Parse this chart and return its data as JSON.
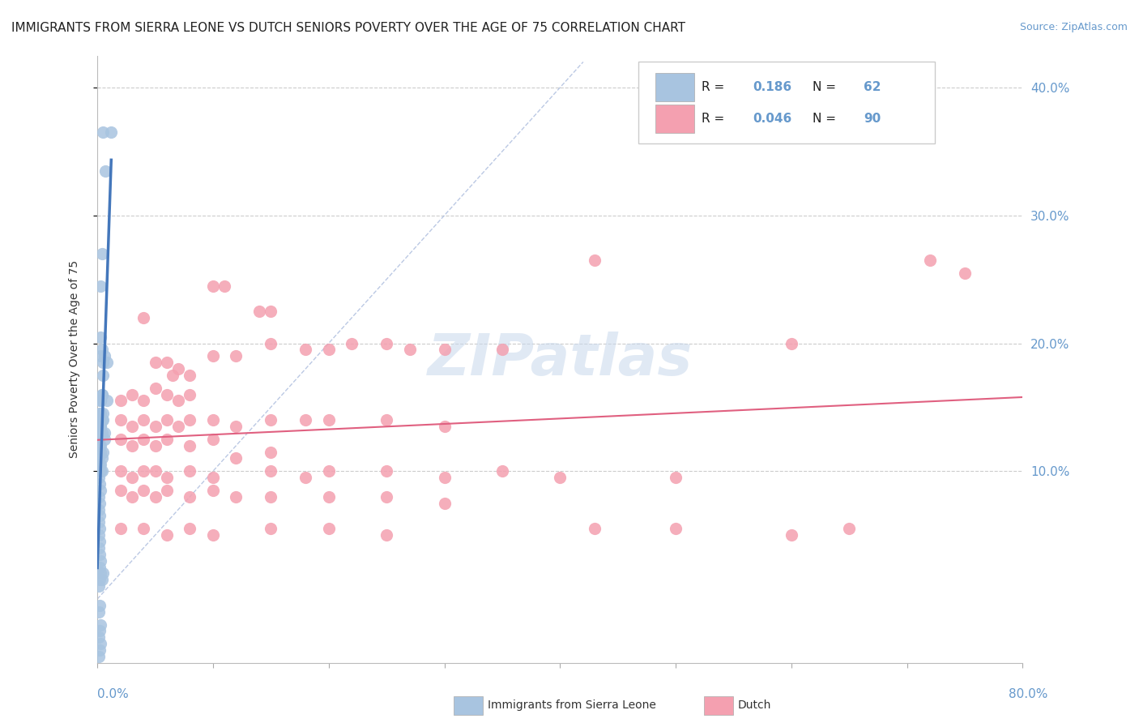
{
  "title": "IMMIGRANTS FROM SIERRA LEONE VS DUTCH SENIORS POVERTY OVER THE AGE OF 75 CORRELATION CHART",
  "source": "Source: ZipAtlas.com",
  "ylabel": "Seniors Poverty Over the Age of 75",
  "xlim": [
    0.0,
    0.8
  ],
  "ylim": [
    -0.05,
    0.425
  ],
  "watermark": "ZIPatlas",
  "blue_color": "#a8c4e0",
  "pink_color": "#f4a0b0",
  "blue_line_color": "#4477bb",
  "pink_line_color": "#e06080",
  "diag_color": "#aabbdd",
  "grid_color": "#cccccc",
  "tick_label_color": "#6699cc",
  "title_fontsize": 11,
  "source_fontsize": 9,
  "background_color": "#ffffff",
  "blue_scatter": [
    [
      0.005,
      0.365
    ],
    [
      0.012,
      0.365
    ],
    [
      0.007,
      0.335
    ],
    [
      0.004,
      0.27
    ],
    [
      0.003,
      0.245
    ],
    [
      0.003,
      0.205
    ],
    [
      0.004,
      0.195
    ],
    [
      0.006,
      0.19
    ],
    [
      0.008,
      0.185
    ],
    [
      0.005,
      0.175
    ],
    [
      0.003,
      0.19
    ],
    [
      0.005,
      0.185
    ],
    [
      0.003,
      0.155
    ],
    [
      0.004,
      0.16
    ],
    [
      0.008,
      0.155
    ],
    [
      0.003,
      0.145
    ],
    [
      0.005,
      0.14
    ],
    [
      0.003,
      0.135
    ],
    [
      0.004,
      0.13
    ],
    [
      0.006,
      0.125
    ],
    [
      0.003,
      0.12
    ],
    [
      0.005,
      0.115
    ],
    [
      0.004,
      0.11
    ],
    [
      0.003,
      0.105
    ],
    [
      0.004,
      0.1
    ],
    [
      0.003,
      0.135
    ],
    [
      0.006,
      0.13
    ],
    [
      0.003,
      0.155
    ],
    [
      0.004,
      0.16
    ],
    [
      0.005,
      0.145
    ],
    [
      0.001,
      0.125
    ],
    [
      0.002,
      0.12
    ],
    [
      0.003,
      0.115
    ],
    [
      0.001,
      0.11
    ],
    [
      0.002,
      0.105
    ],
    [
      0.003,
      0.1
    ],
    [
      0.001,
      0.095
    ],
    [
      0.002,
      0.09
    ],
    [
      0.003,
      0.085
    ],
    [
      0.001,
      0.08
    ],
    [
      0.002,
      0.075
    ],
    [
      0.001,
      0.07
    ],
    [
      0.002,
      0.065
    ],
    [
      0.001,
      0.06
    ],
    [
      0.002,
      0.055
    ],
    [
      0.001,
      0.05
    ],
    [
      0.002,
      0.045
    ],
    [
      0.001,
      0.04
    ],
    [
      0.002,
      0.035
    ],
    [
      0.003,
      0.03
    ],
    [
      0.002,
      0.025
    ],
    [
      0.003,
      0.02
    ],
    [
      0.002,
      0.015
    ],
    [
      0.001,
      0.01
    ],
    [
      0.004,
      0.015
    ],
    [
      0.005,
      0.02
    ],
    [
      0.001,
      0.13
    ],
    [
      0.002,
      0.13
    ],
    [
      0.001,
      0.14
    ],
    [
      0.002,
      0.145
    ],
    [
      0.003,
      0.155
    ],
    [
      0.004,
      0.14
    ],
    [
      0.002,
      -0.005
    ],
    [
      0.001,
      -0.01
    ],
    [
      0.003,
      -0.02
    ],
    [
      0.002,
      -0.025
    ],
    [
      0.001,
      -0.03
    ],
    [
      0.003,
      -0.035
    ],
    [
      0.002,
      -0.04
    ],
    [
      0.001,
      -0.045
    ]
  ],
  "pink_scatter": [
    [
      0.06,
      0.185
    ],
    [
      0.065,
      0.175
    ],
    [
      0.1,
      0.245
    ],
    [
      0.11,
      0.245
    ],
    [
      0.14,
      0.225
    ],
    [
      0.15,
      0.225
    ],
    [
      0.04,
      0.22
    ],
    [
      0.05,
      0.185
    ],
    [
      0.07,
      0.18
    ],
    [
      0.08,
      0.175
    ],
    [
      0.1,
      0.19
    ],
    [
      0.12,
      0.19
    ],
    [
      0.15,
      0.2
    ],
    [
      0.18,
      0.195
    ],
    [
      0.2,
      0.195
    ],
    [
      0.22,
      0.2
    ],
    [
      0.25,
      0.2
    ],
    [
      0.27,
      0.195
    ],
    [
      0.3,
      0.195
    ],
    [
      0.35,
      0.195
    ],
    [
      0.43,
      0.265
    ],
    [
      0.6,
      0.2
    ],
    [
      0.72,
      0.265
    ],
    [
      0.75,
      0.255
    ],
    [
      0.02,
      0.155
    ],
    [
      0.03,
      0.16
    ],
    [
      0.04,
      0.155
    ],
    [
      0.05,
      0.165
    ],
    [
      0.06,
      0.16
    ],
    [
      0.07,
      0.155
    ],
    [
      0.08,
      0.16
    ],
    [
      0.02,
      0.14
    ],
    [
      0.03,
      0.135
    ],
    [
      0.04,
      0.14
    ],
    [
      0.05,
      0.135
    ],
    [
      0.06,
      0.14
    ],
    [
      0.07,
      0.135
    ],
    [
      0.08,
      0.14
    ],
    [
      0.1,
      0.14
    ],
    [
      0.12,
      0.135
    ],
    [
      0.15,
      0.14
    ],
    [
      0.18,
      0.14
    ],
    [
      0.2,
      0.14
    ],
    [
      0.25,
      0.14
    ],
    [
      0.3,
      0.135
    ],
    [
      0.02,
      0.125
    ],
    [
      0.03,
      0.12
    ],
    [
      0.04,
      0.125
    ],
    [
      0.05,
      0.12
    ],
    [
      0.06,
      0.125
    ],
    [
      0.08,
      0.12
    ],
    [
      0.1,
      0.125
    ],
    [
      0.12,
      0.11
    ],
    [
      0.15,
      0.115
    ],
    [
      0.02,
      0.1
    ],
    [
      0.03,
      0.095
    ],
    [
      0.04,
      0.1
    ],
    [
      0.05,
      0.1
    ],
    [
      0.06,
      0.095
    ],
    [
      0.08,
      0.1
    ],
    [
      0.1,
      0.095
    ],
    [
      0.15,
      0.1
    ],
    [
      0.18,
      0.095
    ],
    [
      0.2,
      0.1
    ],
    [
      0.25,
      0.1
    ],
    [
      0.3,
      0.095
    ],
    [
      0.35,
      0.1
    ],
    [
      0.4,
      0.095
    ],
    [
      0.5,
      0.095
    ],
    [
      0.02,
      0.085
    ],
    [
      0.03,
      0.08
    ],
    [
      0.04,
      0.085
    ],
    [
      0.05,
      0.08
    ],
    [
      0.06,
      0.085
    ],
    [
      0.08,
      0.08
    ],
    [
      0.1,
      0.085
    ],
    [
      0.12,
      0.08
    ],
    [
      0.15,
      0.08
    ],
    [
      0.2,
      0.08
    ],
    [
      0.25,
      0.08
    ],
    [
      0.3,
      0.075
    ],
    [
      0.02,
      0.055
    ],
    [
      0.04,
      0.055
    ],
    [
      0.06,
      0.05
    ],
    [
      0.08,
      0.055
    ],
    [
      0.1,
      0.05
    ],
    [
      0.15,
      0.055
    ],
    [
      0.2,
      0.055
    ],
    [
      0.25,
      0.05
    ],
    [
      0.43,
      0.055
    ],
    [
      0.5,
      0.055
    ],
    [
      0.6,
      0.05
    ],
    [
      0.65,
      0.055
    ]
  ]
}
